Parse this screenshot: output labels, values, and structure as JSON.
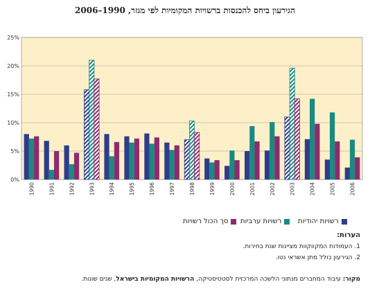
{
  "chart_data": {
    "type": "bar",
    "title": "הגירעון ביחס להכנסות ברשויות המקומיות לפי מגזר, 1990–2006",
    "categories": [
      "1990",
      "1991",
      "1992",
      "1993",
      "1994",
      "1995",
      "1996",
      "1997",
      "1998",
      "1999",
      "2000",
      "2001",
      "2002",
      "2003",
      "2004",
      "2005",
      "2006"
    ],
    "y_ticks": [
      "0%",
      "5%",
      "10%",
      "15%",
      "20%",
      "25%"
    ],
    "ylim": [
      0,
      25
    ],
    "grid": true,
    "highlighted_categories": [
      "1993",
      "1998",
      "2003"
    ],
    "series": [
      {
        "name": "רשויות יהודיות",
        "color": "#2E3C8C",
        "values": [
          8.0,
          6.8,
          6.0,
          15.8,
          8.0,
          7.6,
          8.1,
          6.5,
          7.0,
          3.7,
          2.4,
          5.0,
          5.1,
          11.0,
          7.1,
          3.5,
          2.1
        ]
      },
      {
        "name": "רשויות ערביות",
        "color": "#1A8A82",
        "values": [
          7.2,
          1.7,
          2.7,
          21.0,
          4.1,
          6.5,
          6.3,
          5.2,
          10.3,
          3.0,
          5.1,
          9.4,
          10.1,
          19.6,
          14.2,
          11.8,
          7.0
        ]
      },
      {
        "name": "סך הכול רשויות",
        "color": "#8E2A6E",
        "values": [
          7.6,
          5.0,
          4.7,
          17.7,
          6.6,
          7.2,
          7.4,
          6.0,
          8.3,
          3.4,
          3.4,
          6.7,
          7.6,
          14.2,
          9.8,
          6.7,
          3.9
        ]
      }
    ]
  },
  "notes": {
    "heading": "הערות:",
    "items": [
      "1. העמודות המקווקוות מציינות שנת בחירות.",
      "2. הגירעון כולל מתן אשראי נטו."
    ]
  },
  "source": {
    "label": "מקור:",
    "text": "עיבוד המחברים מנתוני הלשכה המרכזית לסטטיסטיקה,",
    "bold_title": "הרשויות המקומיות בישראל",
    "suffix": ", שנים שונות."
  }
}
